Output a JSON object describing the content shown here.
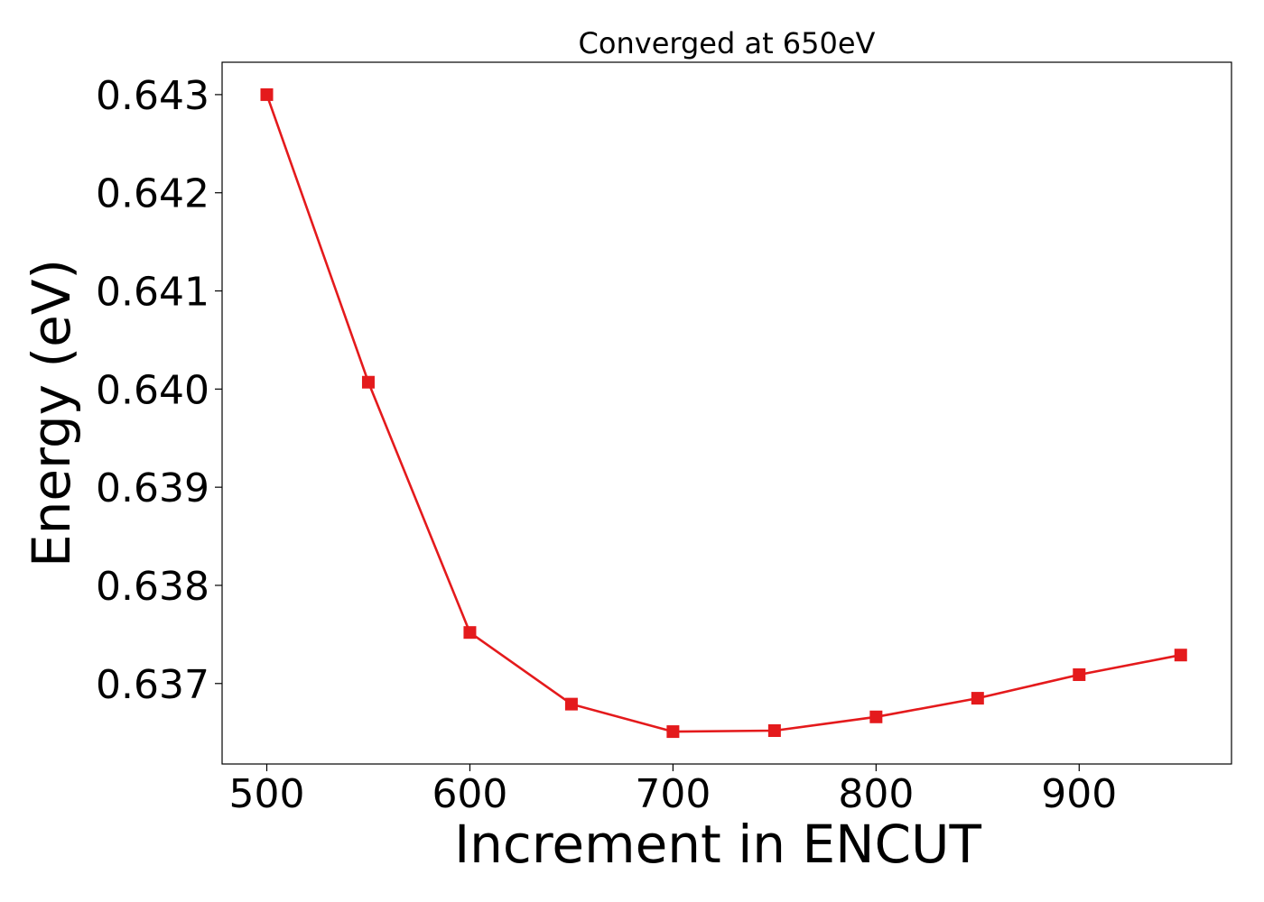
{
  "chart_data": {
    "type": "line",
    "title": "Converged at 650eV",
    "xlabel": "Increment in ENCUT",
    "ylabel": "Energy (eV)",
    "x": [
      500,
      550,
      600,
      650,
      700,
      750,
      800,
      850,
      900,
      950
    ],
    "series": [
      {
        "values": [
          0.643,
          0.64007,
          0.63752,
          0.63679,
          0.63651,
          0.63652,
          0.63666,
          0.63685,
          0.63709,
          0.63729
        ],
        "color": "#e41a1c",
        "marker": "square"
      }
    ],
    "xlim": [
      478,
      975
    ],
    "ylim": [
      0.63618,
      0.64333
    ],
    "xticks": [
      500,
      600,
      700,
      800,
      900
    ],
    "yticks": [
      0.637,
      0.638,
      0.639,
      0.64,
      0.641,
      0.642,
      0.643
    ],
    "xtick_labels": [
      "500",
      "600",
      "700",
      "800",
      "900"
    ],
    "ytick_labels": [
      "0.637",
      "0.638",
      "0.639",
      "0.640",
      "0.641",
      "0.642",
      "0.643"
    ],
    "grid": false,
    "legend": "none"
  }
}
